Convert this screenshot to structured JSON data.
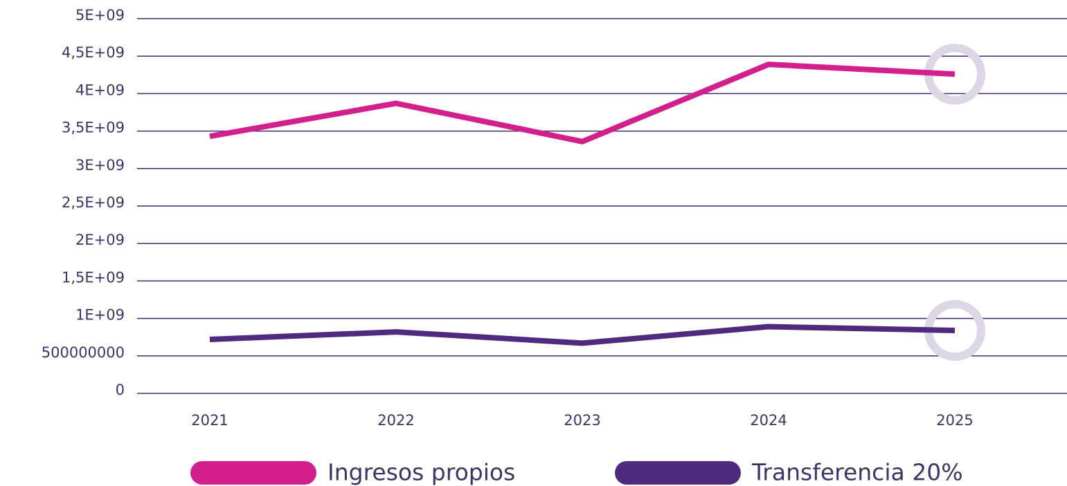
{
  "chart_data": {
    "type": "line",
    "categories": [
      "2021",
      "2022",
      "2023",
      "2024",
      "2025"
    ],
    "series": [
      {
        "name": "Ingresos propios",
        "color": "#d21f8c",
        "values": [
          3430000000,
          3870000000,
          3360000000,
          4390000000,
          4260000000
        ]
      },
      {
        "name": "Transferencia 20%",
        "color": "#4f2a7f",
        "values": [
          720000000,
          820000000,
          670000000,
          890000000,
          840000000
        ]
      }
    ],
    "ylim": [
      0,
      5000000000
    ],
    "yticks": [
      0,
      500000000,
      {
        "value": 1000000000,
        "label": "1E+09"
      },
      {
        "value": 1500000000,
        "label": "1,5E+09"
      },
      {
        "value": 2000000000,
        "label": "2E+09"
      },
      {
        "value": 2500000000,
        "label": "2,5E+09"
      },
      {
        "value": 3000000000,
        "label": "3E+09"
      },
      {
        "value": 3500000000,
        "label": "3,5E+09"
      },
      {
        "value": 4000000000,
        "label": "4E+09"
      },
      {
        "value": 4500000000,
        "label": "4,5E+09"
      },
      {
        "value": 5000000000,
        "label": "5E+09"
      }
    ],
    "grid": true,
    "legend": "bottom"
  }
}
